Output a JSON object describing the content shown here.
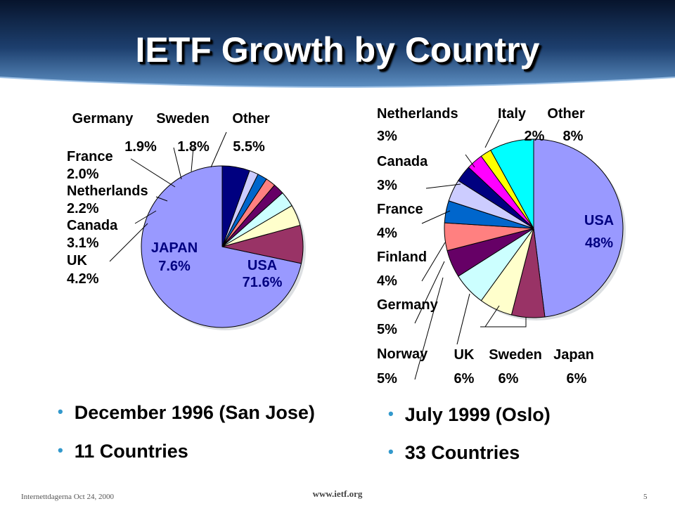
{
  "slide": {
    "title": "IETF Growth by Country",
    "footer_left": "Internettdagerna  Oct 24, 2000",
    "footer_center": "www.ietf.org",
    "page_number": "5"
  },
  "bullets": {
    "left": [
      "December 1996 (San Jose)",
      "11 Countries"
    ],
    "right": [
      "July 1999 (Oslo)",
      "33 Countries"
    ]
  },
  "colors": {
    "header_top": "#0a1d3d",
    "header_mid": "#2f5f97",
    "bullet": "#3399cc"
  },
  "chart_data": [
    {
      "type": "pie",
      "title": "",
      "slices": [
        {
          "name": "USA",
          "value": 71.6,
          "label": "71.6%",
          "color": "#9999ff"
        },
        {
          "name": "JAPAN",
          "value": 7.6,
          "label": "7.6%",
          "color": "#993366"
        },
        {
          "name": "UK",
          "value": 4.2,
          "label": "4.2%",
          "color": "#ffffcc"
        },
        {
          "name": "Canada",
          "value": 3.1,
          "label": "3.1%",
          "color": "#ccffff"
        },
        {
          "name": "Netherlands",
          "value": 2.2,
          "label": "2.2%",
          "color": "#660066"
        },
        {
          "name": "France",
          "value": 2.0,
          "label": "2.0%",
          "color": "#ff8080"
        },
        {
          "name": "Germany",
          "value": 1.9,
          "label": "1.9%",
          "color": "#0066cc"
        },
        {
          "name": "Sweden",
          "value": 1.8,
          "label": "1.8%",
          "color": "#ccccff"
        },
        {
          "name": "Other",
          "value": 5.5,
          "label": "5.5%",
          "color": "#000080"
        }
      ]
    },
    {
      "type": "pie",
      "title": "",
      "slices": [
        {
          "name": "USA",
          "value": 48,
          "label": "48%",
          "color": "#9999ff"
        },
        {
          "name": "Japan",
          "value": 6,
          "label": "6%",
          "color": "#993366"
        },
        {
          "name": "Sweden",
          "value": 6,
          "label": "6%",
          "color": "#ffffcc"
        },
        {
          "name": "UK",
          "value": 6,
          "label": "6%",
          "color": "#ccffff"
        },
        {
          "name": "Norway",
          "value": 5,
          "label": "5%",
          "color": "#660066"
        },
        {
          "name": "Germany",
          "value": 5,
          "label": "5%",
          "color": "#ff8080"
        },
        {
          "name": "Finland",
          "value": 4,
          "label": "4%",
          "color": "#0066cc"
        },
        {
          "name": "France",
          "value": 4,
          "label": "4%",
          "color": "#ccccff"
        },
        {
          "name": "Canada",
          "value": 3,
          "label": "3%",
          "color": "#000080"
        },
        {
          "name": "Netherlands",
          "value": 3,
          "label": "3%",
          "color": "#ff00ff"
        },
        {
          "name": "Italy",
          "value": 2,
          "label": "2%",
          "color": "#ffff00"
        },
        {
          "name": "Other",
          "value": 8,
          "label": "8%",
          "color": "#00ffff"
        }
      ]
    }
  ]
}
